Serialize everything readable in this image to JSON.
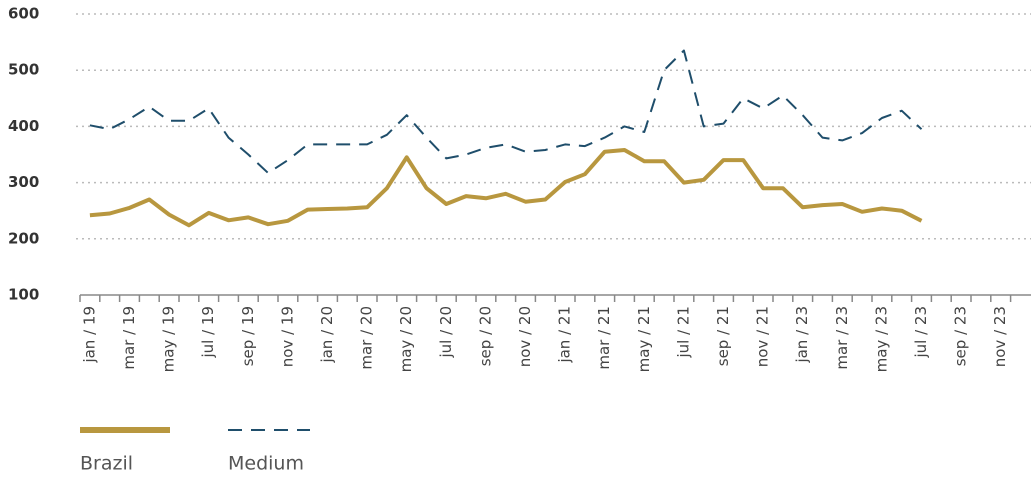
{
  "chart_data": {
    "type": "line",
    "categories": [
      "jan / 19",
      null,
      "mar / 19",
      null,
      "may / 19",
      null,
      "jul / 19",
      null,
      "sep / 19",
      null,
      "nov / 19",
      null,
      "jan / 20",
      null,
      "mar / 20",
      null,
      "may / 20",
      null,
      "jul / 20",
      null,
      "sep / 20",
      null,
      "nov / 20",
      null,
      "jan / 21",
      null,
      "mar / 21",
      null,
      "may / 21",
      null,
      "jul / 21",
      null,
      "sep / 21",
      null,
      "nov / 21",
      null,
      "jan / 23",
      null,
      "mar / 23",
      null,
      "may / 23",
      null,
      "jul / 23",
      null,
      "sep / 23",
      null,
      "nov / 23",
      null
    ],
    "series": [
      {
        "name": "Brazil",
        "color": "#b8973f",
        "dashed": false,
        "values": [
          242,
          245,
          255,
          270,
          243,
          224,
          246,
          233,
          238,
          226,
          232,
          252,
          253,
          254,
          256,
          290,
          345,
          290,
          262,
          276,
          272,
          280,
          266,
          270,
          301,
          315,
          355,
          358,
          338,
          338,
          300,
          305,
          340,
          340,
          290,
          290,
          256,
          260,
          262,
          248,
          254,
          250,
          232,
          null,
          null,
          null,
          null,
          null
        ]
      },
      {
        "name": "Medium",
        "color": "#1f4e6b",
        "dashed": true,
        "values": [
          402,
          395,
          413,
          435,
          410,
          410,
          432,
          380,
          350,
          317,
          340,
          368,
          368,
          368,
          368,
          385,
          420,
          380,
          343,
          350,
          362,
          368,
          355,
          358,
          368,
          365,
          380,
          400,
          390,
          500,
          535,
          400,
          405,
          450,
          432,
          455,
          420,
          380,
          375,
          388,
          415,
          428,
          395,
          null,
          null,
          null,
          null,
          null
        ]
      }
    ],
    "ylim": [
      100,
      600
    ],
    "yticks": [
      100,
      200,
      300,
      400,
      500,
      600
    ],
    "grid": true,
    "legend": "bottom-left"
  }
}
